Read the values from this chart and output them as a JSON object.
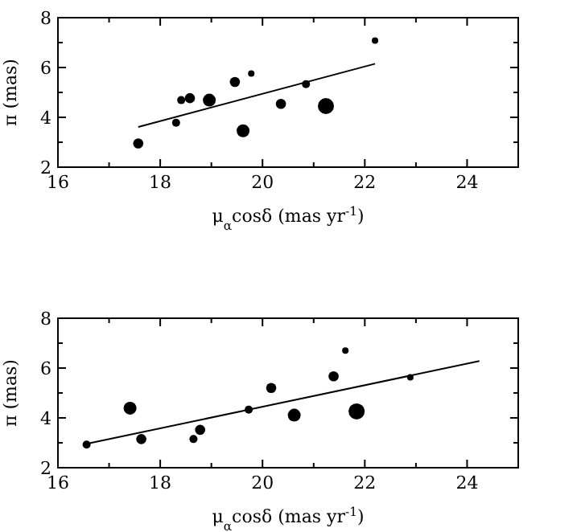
{
  "chart_data": [
    {
      "type": "bubble",
      "xlabel": "μ$_{α}$cosδ (mas yr$^{-1}$)",
      "ylabel": "π (mas)",
      "xlim": [
        16,
        25
      ],
      "ylim": [
        2,
        8
      ],
      "xticks": [
        16,
        {
          "value": 17,
          "label": null
        },
        18,
        {
          "value": 19,
          "label": null
        },
        20,
        {
          "value": 21,
          "label": null
        },
        22,
        {
          "value": 23,
          "label": null
        },
        24
      ],
      "yticks": [
        2,
        {
          "value": 3,
          "label": null
        },
        4,
        {
          "value": 5,
          "label": null
        },
        6,
        {
          "value": 7,
          "label": null
        },
        8
      ],
      "series": [
        {
          "marker": "circle",
          "color": "#000000",
          "x": [
            17.57,
            18.31,
            18.41,
            18.58,
            18.96,
            19.46,
            19.62,
            19.78,
            20.36,
            20.85,
            21.24,
            22.2
          ],
          "values": [
            2.95,
            3.78,
            4.69,
            4.77,
            4.69,
            5.42,
            3.46,
            5.76,
            4.54,
            5.33,
            4.45,
            7.08
          ],
          "sizes": [
            0.4,
            0.25,
            0.25,
            0.4,
            0.64,
            0.4,
            0.64,
            0.16,
            0.4,
            0.25,
            1,
            0.16
          ]
        },
        {
          "type": "line",
          "marker": "none",
          "color": "#000000",
          "x": [
            17.57,
            22.2
          ],
          "values": [
            3.61,
            6.15
          ]
        }
      ]
    },
    {
      "type": "bubble",
      "xlabel": "μ$_{α}$cosδ (mas yr$^{-1}$)",
      "ylabel": "π (mas)",
      "xlim": [
        16,
        25
      ],
      "ylim": [
        2,
        8
      ],
      "xticks": [
        16,
        {
          "value": 17,
          "label": null
        },
        18,
        {
          "value": 19,
          "label": null
        },
        20,
        {
          "value": 21,
          "label": null
        },
        22,
        {
          "value": 23,
          "label": null
        },
        24
      ],
      "yticks": [
        2,
        {
          "value": 3,
          "label": null
        },
        4,
        {
          "value": 5,
          "label": null
        },
        6,
        {
          "value": 7,
          "label": null
        },
        8
      ],
      "series": [
        {
          "marker": "circle",
          "color": "#000000",
          "x": [
            16.56,
            17.41,
            17.63,
            18.65,
            18.78,
            19.73,
            20.17,
            20.62,
            21.39,
            21.62,
            21.84,
            22.89
          ],
          "values": [
            2.93,
            4.39,
            3.15,
            3.15,
            3.52,
            4.33,
            5.2,
            4.11,
            5.67,
            6.7,
            4.26,
            5.63
          ],
          "sizes": [
            0.25,
            0.64,
            0.4,
            0.25,
            0.4,
            0.25,
            0.4,
            0.64,
            0.4,
            0.16,
            1,
            0.16
          ]
        },
        {
          "type": "line",
          "marker": "none",
          "color": "#000000",
          "x": [
            16.56,
            24.24
          ],
          "values": [
            2.96,
            6.28
          ]
        }
      ]
    }
  ]
}
